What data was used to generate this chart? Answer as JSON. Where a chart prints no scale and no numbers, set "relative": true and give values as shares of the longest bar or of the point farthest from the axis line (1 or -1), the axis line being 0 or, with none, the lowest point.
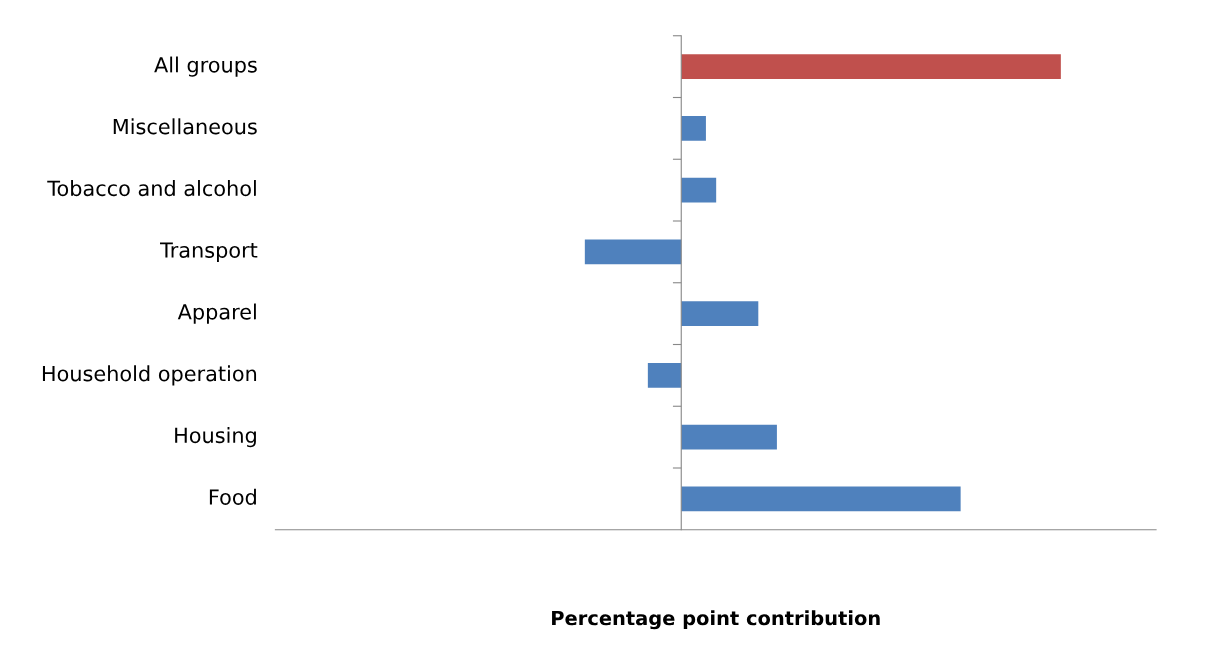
{
  "chart_data": {
    "type": "bar",
    "orientation": "horizontal",
    "relative": true,
    "categories": [
      "All groups",
      "Miscellaneous",
      "Tobacco and alcohol",
      "Transport",
      "Apparel",
      "Household operation",
      "Housing",
      "Food"
    ],
    "values": [
      1,
      0.065,
      0.092,
      -0.254,
      0.203,
      -0.088,
      0.252,
      0.736
    ],
    "colors": [
      "#c0504d",
      "#4f81bd",
      "#4f81bd",
      "#4f81bd",
      "#4f81bd",
      "#4f81bd",
      "#4f81bd",
      "#4f81bd"
    ],
    "xlabel": "Percentage point contribution"
  }
}
